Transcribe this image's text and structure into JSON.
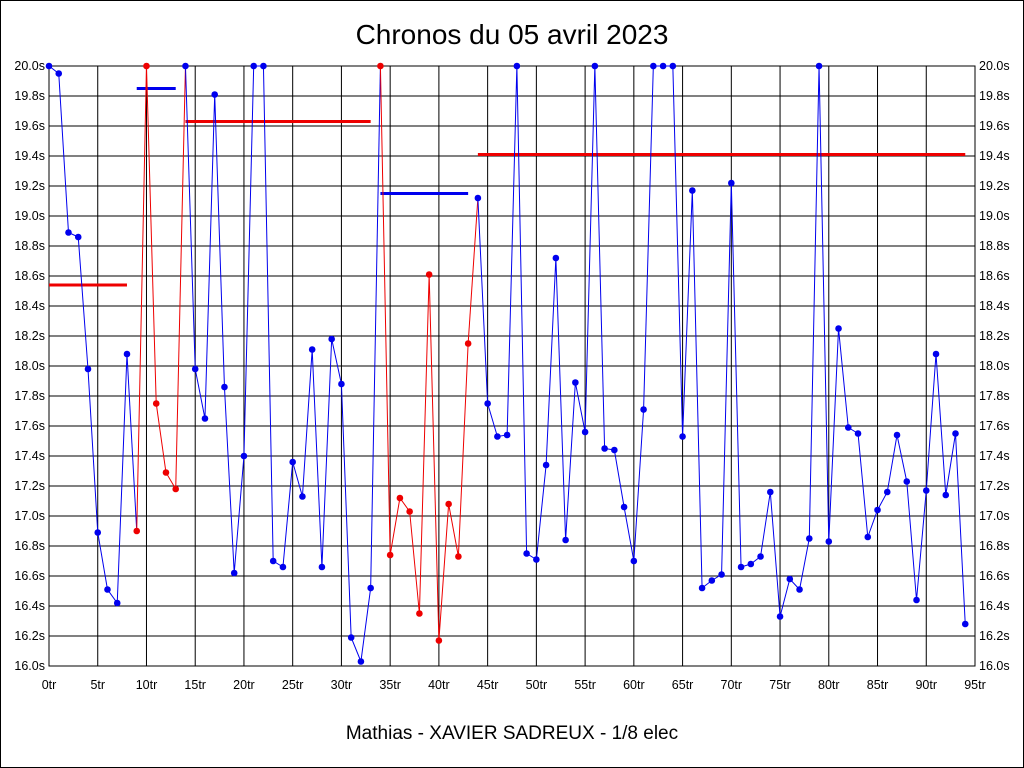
{
  "chart_data": {
    "type": "line",
    "title": "Chronos du 05 avril 2023",
    "xlabel": "Mathias - XAVIER SADREUX - 1/8 elec",
    "ylabel": "",
    "xlim": [
      0,
      95
    ],
    "ylim": [
      16.0,
      20.0
    ],
    "grid": true,
    "x_ticks": [
      {
        "value": 0,
        "label": "0tr"
      },
      {
        "value": 5,
        "label": "5tr"
      },
      {
        "value": 10,
        "label": "10tr"
      },
      {
        "value": 15,
        "label": "15tr"
      },
      {
        "value": 20,
        "label": "20tr"
      },
      {
        "value": 25,
        "label": "25tr"
      },
      {
        "value": 30,
        "label": "30tr"
      },
      {
        "value": 35,
        "label": "35tr"
      },
      {
        "value": 40,
        "label": "40tr"
      },
      {
        "value": 45,
        "label": "45tr"
      },
      {
        "value": 50,
        "label": "50tr"
      },
      {
        "value": 55,
        "label": "55tr"
      },
      {
        "value": 60,
        "label": "60tr"
      },
      {
        "value": 65,
        "label": "65tr"
      },
      {
        "value": 70,
        "label": "70tr"
      },
      {
        "value": 75,
        "label": "75tr"
      },
      {
        "value": 80,
        "label": "80tr"
      },
      {
        "value": 85,
        "label": "85tr"
      },
      {
        "value": 90,
        "label": "90tr"
      },
      {
        "value": 95,
        "label": "95tr"
      }
    ],
    "y_ticks": [
      {
        "value": 20.0,
        "label": "20.0s"
      },
      {
        "value": 19.8,
        "label": "19.8s"
      },
      {
        "value": 19.6,
        "label": "19.6s"
      },
      {
        "value": 19.4,
        "label": "19.4s"
      },
      {
        "value": 19.2,
        "label": "19.2s"
      },
      {
        "value": 19.0,
        "label": "19.0s"
      },
      {
        "value": 18.8,
        "label": "18.8s"
      },
      {
        "value": 18.6,
        "label": "18.6s"
      },
      {
        "value": 18.4,
        "label": "18.4s"
      },
      {
        "value": 18.2,
        "label": "18.2s"
      },
      {
        "value": 18.0,
        "label": "18.0s"
      },
      {
        "value": 17.8,
        "label": "17.8s"
      },
      {
        "value": 17.6,
        "label": "17.6s"
      },
      {
        "value": 17.4,
        "label": "17.4s"
      },
      {
        "value": 17.2,
        "label": "17.2s"
      },
      {
        "value": 17.0,
        "label": "17.0s"
      },
      {
        "value": 16.8,
        "label": "16.8s"
      },
      {
        "value": 16.6,
        "label": "16.6s"
      },
      {
        "value": 16.4,
        "label": "16.4s"
      },
      {
        "value": 16.2,
        "label": "16.2s"
      },
      {
        "value": 16.0,
        "label": "16.0s"
      }
    ],
    "colors": {
      "blue": "#0000ee",
      "red": "#ee0000",
      "grid": "#000000"
    },
    "series": [
      {
        "color": "blue",
        "x": [
          0,
          1,
          2,
          3,
          4,
          5,
          6,
          7,
          8
        ],
        "y": [
          20.0,
          19.95,
          18.89,
          18.86,
          17.98,
          16.89,
          16.51,
          16.42,
          18.08
        ]
      },
      {
        "color": "red",
        "x": [
          9,
          10,
          11,
          12,
          13
        ],
        "y": [
          16.9,
          20.0,
          17.75,
          17.29,
          17.18
        ]
      },
      {
        "color": "blue",
        "x": [
          14,
          15,
          16,
          17,
          18,
          19,
          20,
          21,
          22,
          23,
          24,
          25,
          26,
          27,
          28,
          29,
          30,
          31,
          32,
          33
        ],
        "y": [
          20.0,
          17.98,
          17.65,
          19.81,
          17.86,
          16.62,
          17.4,
          20.0,
          20.0,
          16.7,
          16.66,
          17.36,
          17.13,
          18.11,
          16.66,
          18.18,
          17.88,
          16.19,
          16.03,
          16.52
        ]
      },
      {
        "color": "red",
        "x": [
          34,
          35,
          36,
          37,
          38,
          39,
          40,
          41,
          42,
          43
        ],
        "y": [
          20.0,
          16.74,
          17.12,
          17.03,
          16.35,
          18.61,
          16.17,
          17.08,
          16.73,
          18.15
        ]
      },
      {
        "color": "blue",
        "x": [
          44,
          45,
          46,
          47,
          48,
          49,
          50,
          51,
          52,
          53,
          54,
          55,
          56,
          57,
          58,
          59,
          60,
          61,
          62,
          63,
          64,
          65,
          66,
          67,
          68,
          69,
          70,
          71,
          72,
          73,
          74,
          75,
          76,
          77,
          78,
          79,
          80,
          81,
          82,
          83,
          84,
          85,
          86,
          87,
          88,
          89,
          90,
          91,
          92,
          93,
          94
        ],
        "y": [
          19.12,
          17.75,
          17.53,
          17.54,
          20.0,
          16.75,
          16.71,
          17.34,
          18.72,
          16.84,
          17.89,
          17.56,
          20.0,
          17.45,
          17.44,
          17.06,
          16.7,
          17.71,
          20.0,
          20.0,
          20.0,
          17.53,
          19.17,
          16.52,
          16.57,
          16.61,
          19.22,
          16.66,
          16.68,
          16.73,
          17.16,
          16.33,
          16.58,
          16.51,
          16.85,
          20.0,
          16.83,
          18.25,
          17.59,
          17.55,
          16.86,
          17.04,
          17.16,
          17.54,
          17.23,
          16.44,
          17.17,
          18.08,
          17.14,
          17.55,
          16.28
        ]
      }
    ],
    "reference_lines": [
      {
        "color": "red",
        "x1": 0,
        "x2": 8,
        "y": 18.54
      },
      {
        "color": "blue",
        "x1": 9,
        "x2": 13,
        "y": 19.85
      },
      {
        "color": "red",
        "x1": 14,
        "x2": 33,
        "y": 19.63
      },
      {
        "color": "blue",
        "x1": 34,
        "x2": 43,
        "y": 19.15
      },
      {
        "color": "red",
        "x1": 44,
        "x2": 94,
        "y": 19.41
      }
    ]
  }
}
